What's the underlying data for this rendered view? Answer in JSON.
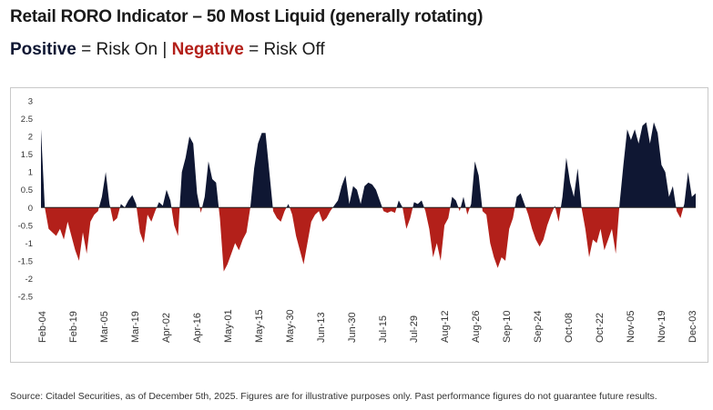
{
  "header": {
    "title": "Retail RORO Indicator – 50 Most Liquid (generally rotating)",
    "subtitle_pos": "Positive",
    "subtitle_mid": " = Risk On | ",
    "subtitle_neg": "Negative",
    "subtitle_end": " = Risk Off"
  },
  "footer": {
    "source": "Source: Citadel Securities, as of December 5th, 2025. Figures are for illustrative purposes only. Past performance figures do not guarantee future results."
  },
  "colors": {
    "positive": "#0f1733",
    "negative": "#b3201a",
    "axis": "#222222"
  },
  "chart_data": {
    "type": "area",
    "title": "Retail RORO Indicator – 50 Most Liquid (generally rotating)",
    "ylim": [
      -2.5,
      3
    ],
    "yticks": [
      "3",
      "2.5",
      "2",
      "1.5",
      "1",
      "0.5",
      "0",
      "-0.5",
      "-1",
      "-1.5",
      "-2",
      "-2.5"
    ],
    "xticks": [
      "Feb-04",
      "Feb-19",
      "Mar-05",
      "Mar-19",
      "Apr-02",
      "Apr-16",
      "May-01",
      "May-15",
      "May-30",
      "Jun-13",
      "Jun-30",
      "Jul-15",
      "Jul-29",
      "Aug-12",
      "Aug-26",
      "Sep-10",
      "Sep-24",
      "Oct-08",
      "Oct-22",
      "Nov-05",
      "Nov-19",
      "Dec-03"
    ],
    "grid": false,
    "legend": "none",
    "values": [
      2.2,
      0.0,
      -0.6,
      -0.7,
      -0.8,
      -0.6,
      -0.9,
      -0.4,
      -0.8,
      -1.2,
      -1.5,
      -0.7,
      -1.3,
      -0.4,
      -0.2,
      -0.1,
      0.3,
      1.0,
      0.1,
      -0.4,
      -0.3,
      0.1,
      0.0,
      0.2,
      0.35,
      0.1,
      -0.7,
      -1.0,
      -0.2,
      -0.4,
      -0.1,
      0.15,
      0.05,
      0.5,
      0.2,
      -0.5,
      -0.8,
      1.0,
      1.4,
      2.0,
      1.8,
      0.4,
      -0.15,
      0.3,
      1.3,
      0.8,
      0.7,
      -0.3,
      -1.8,
      -1.6,
      -1.3,
      -1.0,
      -1.2,
      -0.9,
      -0.7,
      0.0,
      1.1,
      1.8,
      2.1,
      2.1,
      1.0,
      -0.1,
      -0.3,
      -0.4,
      -0.1,
      0.1,
      -0.2,
      -0.8,
      -1.2,
      -1.6,
      -1.0,
      -0.4,
      -0.2,
      -0.1,
      -0.4,
      -0.3,
      -0.1,
      0.05,
      0.2,
      0.6,
      0.9,
      0.1,
      0.6,
      0.5,
      0.1,
      0.6,
      0.7,
      0.65,
      0.5,
      0.2,
      -0.1,
      -0.15,
      -0.1,
      -0.15,
      0.2,
      0.0,
      -0.6,
      -0.3,
      0.15,
      0.1,
      0.2,
      -0.1,
      -0.6,
      -1.4,
      -1.0,
      -1.5,
      -0.5,
      -0.3,
      0.3,
      0.2,
      -0.1,
      0.3,
      -0.2,
      0.1,
      1.3,
      0.9,
      -0.1,
      -0.2,
      -1.0,
      -1.4,
      -1.7,
      -1.4,
      -1.5,
      -0.6,
      -0.3,
      0.3,
      0.4,
      0.1,
      -0.2,
      -0.6,
      -0.9,
      -1.1,
      -0.9,
      -0.5,
      -0.2,
      0.05,
      -0.4,
      0.3,
      1.4,
      0.7,
      0.3,
      1.1,
      0.0,
      -0.6,
      -1.4,
      -0.9,
      -1.0,
      -0.6,
      -1.2,
      -0.9,
      -0.6,
      -1.3,
      0.1,
      1.2,
      2.2,
      1.9,
      2.2,
      1.8,
      2.3,
      2.4,
      1.8,
      2.4,
      2.1,
      1.2,
      1.0,
      0.3,
      0.6,
      -0.1,
      -0.3,
      0.1,
      1.0,
      0.3,
      0.4
    ]
  }
}
